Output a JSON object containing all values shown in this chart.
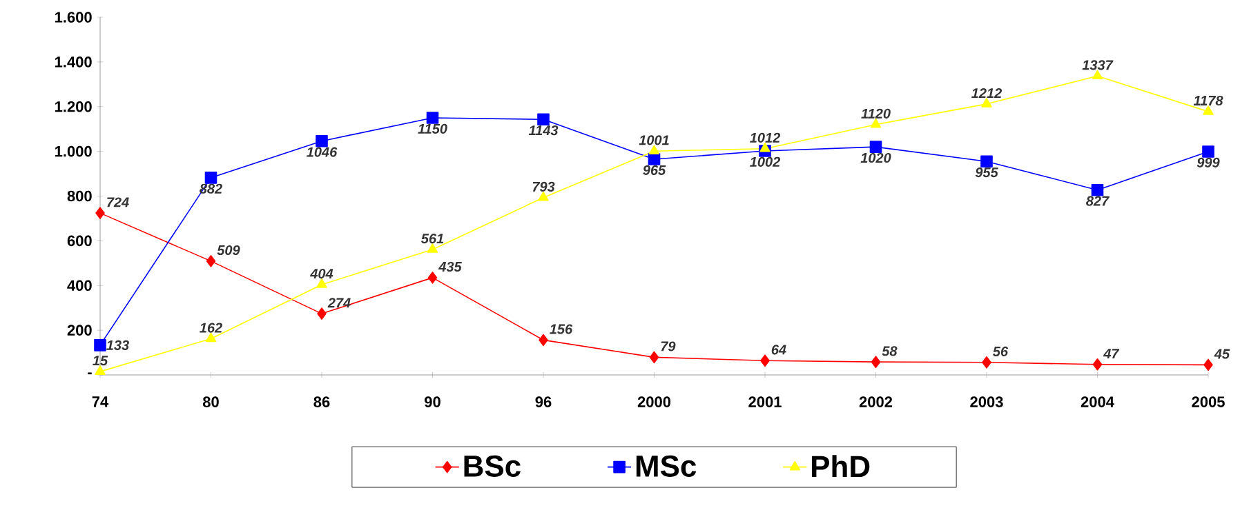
{
  "chart_data": {
    "type": "line",
    "categories": [
      "74",
      "80",
      "86",
      "90",
      "96",
      "2000",
      "2001",
      "2002",
      "2003",
      "2004",
      "2005"
    ],
    "series": [
      {
        "name": "BSc",
        "color": "#ff0000",
        "marker": "diamond",
        "values": [
          724,
          509,
          274,
          435,
          156,
          79,
          64,
          58,
          56,
          47,
          45
        ]
      },
      {
        "name": "MSc",
        "color": "#0000ff",
        "marker": "square",
        "values": [
          133,
          882,
          1046,
          1150,
          1143,
          965,
          1002,
          1020,
          955,
          827,
          999
        ]
      },
      {
        "name": "PhD",
        "color": "#ffff00",
        "marker": "triangle",
        "values": [
          15,
          162,
          404,
          561,
          793,
          1001,
          1012,
          1120,
          1212,
          1337,
          1178
        ]
      }
    ],
    "ylim": [
      0,
      1600
    ],
    "yticks": [
      {
        "value": 0,
        "label": "-"
      },
      200,
      400,
      600,
      800,
      {
        "value": 1000,
        "label": "1.000"
      },
      {
        "value": 1200,
        "label": "1.200"
      },
      {
        "value": 1400,
        "label": "1.400"
      },
      {
        "value": 1600,
        "label": "1.600"
      }
    ],
    "data_labels": true,
    "legend": "bottom",
    "grid": false,
    "line_style": "solid"
  }
}
